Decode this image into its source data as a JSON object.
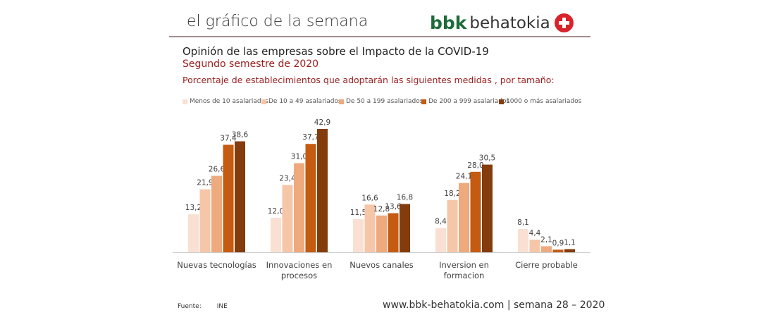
{
  "header": {
    "title": "el gráfico de la semana",
    "logo_bbk": "bbk",
    "logo_text": "behatokia"
  },
  "chart_data": {
    "type": "bar",
    "title": "Opinión de las empresas sobre el Impacto de la COVID-19",
    "subtitle": "Segundo semestre de 2020",
    "description": "Porcentaje de establecimientos que adoptarán las siguientes medidas , por tamaño:",
    "categories": [
      "Nuevas tecnologías",
      "Innovaciones en procesos",
      "Nuevos canales",
      "Inversion en formacion",
      "Cierre probable"
    ],
    "category_lines": [
      [
        "Nuevas tecnologías"
      ],
      [
        "Innovaciones en",
        "procesos"
      ],
      [
        "Nuevos canales"
      ],
      [
        "Inversion en",
        "formacion"
      ],
      [
        "Cierre probable"
      ]
    ],
    "series": [
      {
        "name": "Menos de 10 asalariados",
        "color": "#f9e0d2",
        "values": [
          13.2,
          12.0,
          11.5,
          8.4,
          8.1
        ],
        "labels": [
          "13,2",
          "12,0",
          "11,5",
          "8,4",
          "8,1"
        ]
      },
      {
        "name": "De 10 a 49 asalariados",
        "color": "#f5c6a8",
        "values": [
          21.9,
          23.4,
          16.6,
          18.2,
          4.4
        ],
        "labels": [
          "21,9",
          "23,4",
          "16,6",
          "18,2",
          "4,4"
        ]
      },
      {
        "name": "De 50 a 199 asalariados",
        "color": "#eea97d",
        "values": [
          26.6,
          31.0,
          12.8,
          24.1,
          2.1
        ],
        "labels": [
          "26,6",
          "31,0",
          "12,8",
          "24,1",
          "2,1"
        ]
      },
      {
        "name": "De 200 a 999 asalariados",
        "color": "#c55a11",
        "values": [
          37.4,
          37.7,
          13.6,
          28.0,
          0.9
        ],
        "labels": [
          "37,4",
          "37,7",
          "13,6",
          "28,0",
          "0,9"
        ]
      },
      {
        "name": "1000 o más asalariados",
        "color": "#843c0c",
        "values": [
          38.6,
          42.9,
          16.8,
          30.5,
          1.1
        ],
        "labels": [
          "38,6",
          "42,9",
          "16,8",
          "30,5",
          "1,1"
        ]
      }
    ],
    "ylim": [
      0,
      45
    ],
    "grid": false,
    "legend_position": "top"
  },
  "footer": {
    "source_label": "Fuente:",
    "source": "INE",
    "url": "www.bbk-behatokia.com | semana 28 – 2020"
  }
}
